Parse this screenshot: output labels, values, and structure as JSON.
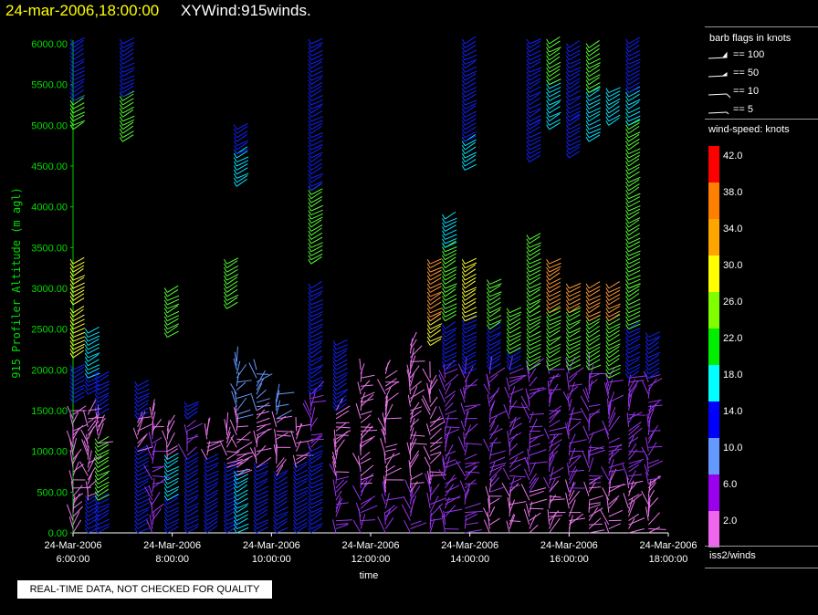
{
  "header": {
    "datetime": "24-mar-2006,18:00:00",
    "title": "XYWind:915winds."
  },
  "notice": "REAL-TIME DATA, NOT CHECKED FOR QUALITY",
  "legend": {
    "barb_title": "barb flags in knots",
    "barb_items": [
      "== 100",
      "== 50",
      "== 10",
      "== 5"
    ],
    "speed_title": "wind-speed: knots",
    "speed_scale": [
      {
        "label": "42.0",
        "color": "#ff0000"
      },
      {
        "label": "38.0",
        "color": "#ff7f00"
      },
      {
        "label": "34.0",
        "color": "#ffa500"
      },
      {
        "label": "30.0",
        "color": "#ffff00"
      },
      {
        "label": "26.0",
        "color": "#7fff00"
      },
      {
        "label": "22.0",
        "color": "#00ee00"
      },
      {
        "label": "18.0",
        "color": "#00ffff"
      },
      {
        "label": "14.0",
        "color": "#0000ff"
      },
      {
        "label": "10.0",
        "color": "#6699ff"
      },
      {
        "label": "6.0",
        "color": "#9900ee"
      },
      {
        "label": "2.0",
        "color": "#ee66ee"
      }
    ],
    "source": "iss2/winds"
  },
  "chart_data": {
    "type": "scatter",
    "title": "XYWind:915winds.",
    "xlabel": "time",
    "ylabel": "915 Profiler Altitude (m agl)",
    "ylim": [
      0,
      6000
    ],
    "xlim": [
      "24-Mar-2006 6:00:00",
      "24-Mar-2006 18:00:00"
    ],
    "y_ticks": [
      "0.00",
      "500.00",
      "1000.00",
      "1500.00",
      "2000.00",
      "2500.00",
      "3000.00",
      "3500.00",
      "4000.00",
      "4500.00",
      "5000.00",
      "5500.00",
      "6000.00"
    ],
    "x_ticks": [
      {
        "date": "24-Mar-2006",
        "time": "6:00:00"
      },
      {
        "date": "24-Mar-2006",
        "time": "8:00:00"
      },
      {
        "date": "24-Mar-2006",
        "time": "10:00:00"
      },
      {
        "date": "24-Mar-2006",
        "time": "12:00:00"
      },
      {
        "date": "24-Mar-2006",
        "time": "14:00:00"
      },
      {
        "date": "24-Mar-2006",
        "time": "16:00:00"
      },
      {
        "date": "24-Mar-2006",
        "time": "18:00:00"
      }
    ],
    "grid": false,
    "colors": {
      "axis": "#00cc00",
      "tick_label": "#00dd00"
    },
    "profiles": [
      {
        "time": 6.0,
        "segments": [
          [
            0,
            1500,
            "pink"
          ],
          [
            1600,
            2000,
            "blue"
          ],
          [
            2150,
            2700,
            "yellow"
          ],
          [
            2800,
            3300,
            "yellow"
          ],
          [
            4950,
            5300,
            "green"
          ],
          [
            5300,
            6000,
            "blue"
          ]
        ]
      },
      {
        "time": 6.3,
        "segments": [
          [
            0,
            400,
            "blue"
          ],
          [
            400,
            1500,
            "pink"
          ],
          [
            1700,
            1900,
            "blue"
          ],
          [
            1900,
            2450,
            "cyan"
          ]
        ]
      },
      {
        "time": 6.5,
        "segments": [
          [
            0,
            400,
            "blue"
          ],
          [
            400,
            1100,
            "green"
          ],
          [
            1100,
            1400,
            "pink"
          ],
          [
            1450,
            1900,
            "blue"
          ]
        ]
      },
      {
        "time": 7.0,
        "segments": [
          [
            4800,
            5350,
            "green"
          ],
          [
            5350,
            6000,
            "blue"
          ]
        ]
      },
      {
        "time": 7.3,
        "segments": [
          [
            0,
            1000,
            "blue"
          ],
          [
            1000,
            1400,
            "pink"
          ],
          [
            1400,
            1800,
            "blue"
          ]
        ]
      },
      {
        "time": 7.6,
        "segments": [
          [
            0,
            1200,
            "purple"
          ],
          [
            1200,
            1500,
            "pink"
          ]
        ]
      },
      {
        "time": 7.9,
        "segments": [
          [
            0,
            400,
            "blue"
          ],
          [
            400,
            900,
            "cyan"
          ],
          [
            900,
            1300,
            "pink"
          ],
          [
            2400,
            2950,
            "green"
          ]
        ]
      },
      {
        "time": 8.3,
        "segments": [
          [
            0,
            900,
            "blue"
          ],
          [
            900,
            1300,
            "purple"
          ],
          [
            1400,
            1550,
            "blue"
          ]
        ]
      },
      {
        "time": 8.7,
        "segments": [
          [
            0,
            900,
            "blue"
          ],
          [
            900,
            1250,
            "pink"
          ]
        ]
      },
      {
        "time": 9.1,
        "segments": [
          [
            0,
            800,
            "blue"
          ],
          [
            800,
            1300,
            "pink"
          ],
          [
            2750,
            3300,
            "green"
          ]
        ]
      },
      {
        "time": 9.3,
        "segments": [
          [
            0,
            700,
            "cyan"
          ],
          [
            700,
            1400,
            "pink"
          ],
          [
            1400,
            2100,
            "lightblue"
          ],
          [
            4250,
            4650,
            "cyan"
          ],
          [
            4650,
            4950,
            "blue"
          ]
        ]
      },
      {
        "time": 9.7,
        "segments": [
          [
            0,
            800,
            "blue"
          ],
          [
            800,
            1500,
            "pink"
          ],
          [
            1500,
            2000,
            "lightblue"
          ]
        ]
      },
      {
        "time": 10.1,
        "segments": [
          [
            0,
            700,
            "blue"
          ],
          [
            700,
            1400,
            "pink"
          ],
          [
            1400,
            1700,
            "lightblue"
          ]
        ]
      },
      {
        "time": 10.5,
        "segments": [
          [
            0,
            800,
            "blue"
          ],
          [
            800,
            1300,
            "pink"
          ]
        ]
      },
      {
        "time": 10.8,
        "segments": [
          [
            0,
            1000,
            "blue"
          ],
          [
            1000,
            1700,
            "purple"
          ],
          [
            1700,
            3000,
            "blue"
          ],
          [
            3300,
            4200,
            "green"
          ],
          [
            4200,
            6000,
            "blue"
          ]
        ]
      },
      {
        "time": 11.3,
        "segments": [
          [
            0,
            700,
            "purple"
          ],
          [
            700,
            1500,
            "pink"
          ],
          [
            1500,
            2300,
            "blue"
          ]
        ]
      },
      {
        "time": 11.8,
        "segments": [
          [
            0,
            600,
            "purple"
          ],
          [
            600,
            1600,
            "pink"
          ],
          [
            1600,
            2000,
            "pink"
          ]
        ]
      },
      {
        "time": 12.3,
        "segments": [
          [
            0,
            500,
            "purple"
          ],
          [
            500,
            1400,
            "pink"
          ],
          [
            1400,
            2000,
            "pink"
          ]
        ]
      },
      {
        "time": 12.8,
        "segments": [
          [
            0,
            500,
            "purple"
          ],
          [
            500,
            1900,
            "pink"
          ],
          [
            1900,
            2300,
            "pink"
          ]
        ]
      },
      {
        "time": 13.2,
        "segments": [
          [
            0,
            600,
            "purple"
          ],
          [
            600,
            1900,
            "pink"
          ],
          [
            2300,
            2600,
            "yellow"
          ],
          [
            2600,
            3300,
            "orange"
          ]
        ]
      },
      {
        "time": 13.5,
        "segments": [
          [
            0,
            800,
            "purple"
          ],
          [
            800,
            2000,
            "purple"
          ],
          [
            2000,
            2500,
            "blue"
          ],
          [
            2600,
            3500,
            "green"
          ],
          [
            3500,
            3850,
            "cyan"
          ]
        ]
      },
      {
        "time": 13.9,
        "segments": [
          [
            0,
            700,
            "purple"
          ],
          [
            700,
            1950,
            "purple"
          ],
          [
            1950,
            2600,
            "blue"
          ],
          [
            2600,
            3300,
            "yellow"
          ],
          [
            4450,
            4800,
            "cyan"
          ],
          [
            4800,
            6000,
            "blue"
          ]
        ]
      },
      {
        "time": 14.4,
        "segments": [
          [
            0,
            500,
            "pink"
          ],
          [
            500,
            2000,
            "purple"
          ],
          [
            2000,
            2500,
            "blue"
          ],
          [
            2500,
            3050,
            "green"
          ]
        ]
      },
      {
        "time": 14.8,
        "segments": [
          [
            0,
            500,
            "pink"
          ],
          [
            500,
            2000,
            "purple"
          ],
          [
            2000,
            2200,
            "blue"
          ],
          [
            2200,
            2700,
            "green"
          ]
        ]
      },
      {
        "time": 15.2,
        "segments": [
          [
            0,
            500,
            "pink"
          ],
          [
            500,
            2000,
            "purple"
          ],
          [
            2000,
            2700,
            "green"
          ],
          [
            2700,
            3600,
            "green"
          ],
          [
            4550,
            5000,
            "blue"
          ],
          [
            5000,
            6000,
            "blue"
          ]
        ]
      },
      {
        "time": 15.6,
        "segments": [
          [
            0,
            500,
            "pink"
          ],
          [
            500,
            2000,
            "purple"
          ],
          [
            2000,
            2700,
            "green"
          ],
          [
            2700,
            3300,
            "orange"
          ],
          [
            4950,
            5500,
            "cyan"
          ],
          [
            5500,
            6000,
            "green"
          ]
        ]
      },
      {
        "time": 16.0,
        "segments": [
          [
            0,
            500,
            "pink"
          ],
          [
            500,
            2000,
            "purple"
          ],
          [
            2000,
            2700,
            "green"
          ],
          [
            2700,
            3000,
            "orange"
          ],
          [
            4600,
            5050,
            "blue"
          ],
          [
            5050,
            5950,
            "blue"
          ]
        ]
      },
      {
        "time": 16.4,
        "segments": [
          [
            0,
            600,
            "pink"
          ],
          [
            600,
            2000,
            "purple"
          ],
          [
            2000,
            2600,
            "green"
          ],
          [
            2600,
            3000,
            "orange"
          ],
          [
            4800,
            5400,
            "cyan"
          ],
          [
            5400,
            5950,
            "green"
          ]
        ]
      },
      {
        "time": 16.8,
        "segments": [
          [
            0,
            600,
            "pink"
          ],
          [
            600,
            1900,
            "purple"
          ],
          [
            1900,
            2600,
            "green"
          ],
          [
            2600,
            3000,
            "orange"
          ],
          [
            5000,
            5400,
            "cyan"
          ]
        ]
      },
      {
        "time": 17.2,
        "segments": [
          [
            0,
            600,
            "pink"
          ],
          [
            600,
            1900,
            "purple"
          ],
          [
            1900,
            2500,
            "blue"
          ],
          [
            2500,
            3000,
            "green"
          ],
          [
            3000,
            5000,
            "green"
          ],
          [
            5000,
            5400,
            "cyan"
          ],
          [
            5400,
            6000,
            "blue"
          ]
        ]
      },
      {
        "time": 17.6,
        "segments": [
          [
            0,
            600,
            "pink"
          ],
          [
            600,
            1900,
            "purple"
          ],
          [
            1900,
            2400,
            "blue"
          ]
        ]
      }
    ]
  }
}
